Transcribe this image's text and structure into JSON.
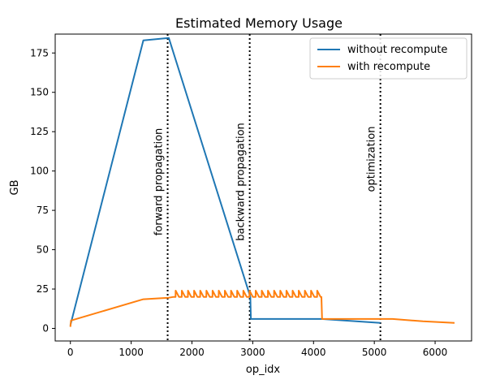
{
  "chart_data": {
    "type": "line",
    "title": "Estimated Memory Usage",
    "xlabel": "op_idx",
    "ylabel": "GB",
    "xlim": [
      -250,
      6600
    ],
    "ylim": [
      -8,
      187
    ],
    "xticks": [
      0,
      1000,
      2000,
      3000,
      4000,
      5000,
      6000
    ],
    "yticks": [
      0,
      25,
      50,
      75,
      100,
      125,
      150,
      175
    ],
    "grid": false,
    "legend_placement": "top-right",
    "series": [
      {
        "name": "without recompute",
        "color": "#1f77b4",
        "points": [
          [
            0,
            2
          ],
          [
            1200,
            183
          ],
          [
            1620,
            184.5
          ],
          [
            2960,
            20
          ],
          [
            2970,
            6
          ],
          [
            4130,
            6
          ],
          [
            5100,
            3.5
          ]
        ]
      },
      {
        "name": "with recompute",
        "color": "#ff7f0e",
        "base_points": [
          [
            0,
            1
          ],
          [
            10,
            5
          ],
          [
            1200,
            18.5
          ],
          [
            1620,
            19.5
          ],
          [
            1700,
            20
          ],
          [
            4130,
            20
          ],
          [
            4140,
            6
          ],
          [
            5300,
            6
          ],
          [
            5800,
            4.5
          ],
          [
            6320,
            3.5
          ]
        ],
        "spikes": {
          "x_start": 1700,
          "x_end": 4130,
          "count": 24,
          "low": 20,
          "high": 24
        }
      }
    ],
    "annotations": [
      {
        "x": 1600,
        "label": "forward propagation"
      },
      {
        "x": 2950,
        "label": "backward propagation"
      },
      {
        "x": 5100,
        "label": "optimization"
      }
    ]
  }
}
